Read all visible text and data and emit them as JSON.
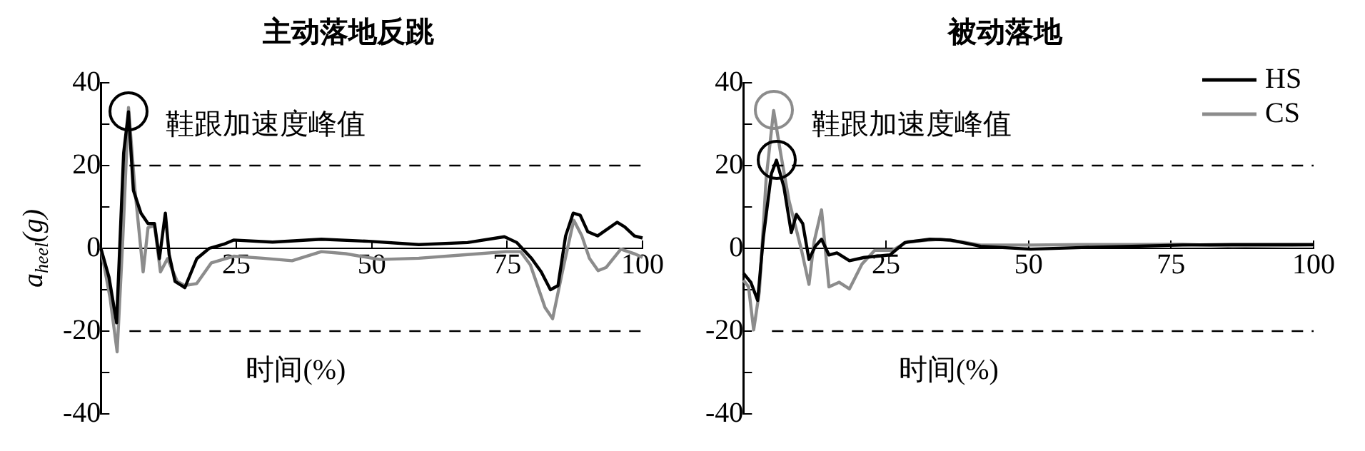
{
  "chart_data": [
    {
      "type": "line",
      "title": "主动落地反跳",
      "xlabel": "时间(%)",
      "ylabel": "a$_{heel}$(g)",
      "annotations": [
        "鞋跟加速度峰值"
      ],
      "xlim": [
        0,
        100
      ],
      "xticks": [
        25,
        50,
        75,
        100
      ],
      "ylim": [
        -40,
        40
      ],
      "yticks": [
        -40,
        {
          "value": -30,
          "label": null
        },
        -20,
        {
          "value": -10,
          "label": null
        },
        0,
        {
          "value": 10,
          "label": null
        },
        20,
        {
          "value": 30,
          "label": null
        },
        40
      ],
      "grid": false,
      "legend": false,
      "marker": "none",
      "line_style": "solid",
      "ref_lines": [
        {
          "axis": "y",
          "value": 20,
          "color": "#000000",
          "line_style": "dashed"
        },
        {
          "axis": "y",
          "value": -20,
          "color": "#000000",
          "line_style": "dashed"
        }
      ],
      "series": [
        {
          "color": "#000000",
          "x": [
            0,
            1.5,
            2.9,
            4.2,
            5.1,
            6,
            7.4,
            8.7,
            9.9,
            10.8,
            11.9,
            12.6,
            13.7,
            15.5,
            17.7,
            20,
            22.7,
            24.5,
            31.7,
            40.7,
            49.5,
            58.7,
            67.7,
            74.5,
            76.8,
            79.5,
            81.3,
            83,
            84.4,
            85.8,
            87.2,
            88.5,
            89.9,
            91.7,
            95.3,
            96.7,
            98.5,
            100
          ],
          "values": [
            0,
            -7,
            -18,
            23,
            33,
            14,
            8.5,
            6,
            6,
            -2.5,
            8.5,
            -1.5,
            -8,
            -9.5,
            -2.5,
            0,
            1,
            2,
            1.5,
            2.2,
            1.7,
            0.9,
            1.4,
            2.8,
            1.4,
            -2.4,
            -5.7,
            -10,
            -9,
            3,
            8.5,
            8,
            4,
            3,
            6.3,
            5.2,
            3,
            2.5
          ]
        },
        {
          "color": "#8c8c8c",
          "x": [
            0,
            1.7,
            3,
            4,
            5.1,
            6.3,
            7.8,
            8.7,
            9.9,
            11,
            12.3,
            14.1,
            15.5,
            17.7,
            20.4,
            24.5,
            29.9,
            35.3,
            40.7,
            45.2,
            51.5,
            58.7,
            67.7,
            74.8,
            77.5,
            79.3,
            82,
            83.4,
            85.2,
            87.3,
            88.8,
            90.2,
            91.8,
            93.3,
            96,
            98.5,
            100
          ],
          "values": [
            0,
            -12,
            -25,
            1,
            34,
            14,
            -5.7,
            5,
            5.5,
            -5.7,
            -2.5,
            -8,
            -9,
            -8.5,
            -3.5,
            -1.9,
            -2.4,
            -3,
            -0.8,
            -1.3,
            -2.7,
            -2.4,
            -1.5,
            -0.8,
            -0.8,
            -4,
            -14.3,
            -17,
            -5.7,
            6.8,
            3,
            -2.4,
            -5.4,
            -4.6,
            -0.2,
            -1.3,
            -2.2
          ]
        }
      ]
    },
    {
      "type": "line",
      "title": "被动落地",
      "xlabel": "时间(%)",
      "annotations": [
        "鞋跟加速度峰值"
      ],
      "xlim": [
        0,
        100
      ],
      "xticks": [
        25,
        50,
        75,
        100
      ],
      "ylim": [
        -40,
        40
      ],
      "yticks": [
        -40,
        {
          "value": -30,
          "label": null
        },
        -20,
        {
          "value": -10,
          "label": null
        },
        0,
        {
          "value": 10,
          "label": null
        },
        20,
        {
          "value": 30,
          "label": null
        },
        40
      ],
      "grid": false,
      "legend": "top right",
      "marker": "none",
      "line_style": "solid",
      "ref_lines": [
        {
          "axis": "y",
          "value": 20,
          "color": "#000000",
          "line_style": "dashed"
        },
        {
          "axis": "y",
          "value": -20,
          "color": "#000000",
          "line_style": "dashed"
        }
      ],
      "series": [
        {
          "name": "HS",
          "color": "#000000",
          "x": [
            0,
            1.3,
            2.5,
            3.5,
            4.9,
            5.8,
            7.1,
            8.4,
            9.3,
            10.4,
            11.5,
            12.6,
            13.7,
            15,
            16.4,
            18.6,
            21.2,
            25.7,
            28.3,
            32.7,
            36.3,
            41.6,
            50.4,
            59.3,
            68.1,
            77,
            85.8,
            100
          ],
          "values": [
            -6,
            -8.2,
            -12.6,
            2.7,
            18,
            21.3,
            14.8,
            3.8,
            8.2,
            6,
            -2.7,
            0.5,
            2.2,
            -1.6,
            -1.1,
            -3,
            -2.2,
            -1.6,
            1.4,
            2.2,
            2,
            0.5,
            -0.2,
            0.2,
            0.5,
            0.8,
            0.9,
            0.9
          ]
        },
        {
          "name": "CS",
          "color": "#8c8c8c",
          "x": [
            0,
            0.9,
            1.8,
            2.8,
            4,
            5.3,
            6.6,
            8,
            10.2,
            11.5,
            12.4,
            13.7,
            15,
            16.8,
            18.6,
            20.8,
            23,
            26.1,
            28.8,
            34.5,
            38.1,
            41.6,
            50.4,
            59.3,
            68.1,
            77,
            85.8,
            100
          ],
          "values": [
            -7.7,
            -9.3,
            -19.7,
            -10.4,
            17,
            33.3,
            22.4,
            11.5,
            -0.5,
            -8.7,
            1.6,
            9.3,
            -9.3,
            -8.2,
            -9.8,
            -3.8,
            -0.5,
            -0.5,
            1.6,
            2.2,
            1.6,
            0.8,
            0.8,
            0.9,
            0.9,
            1,
            0.5,
            0.8
          ]
        }
      ]
    }
  ]
}
